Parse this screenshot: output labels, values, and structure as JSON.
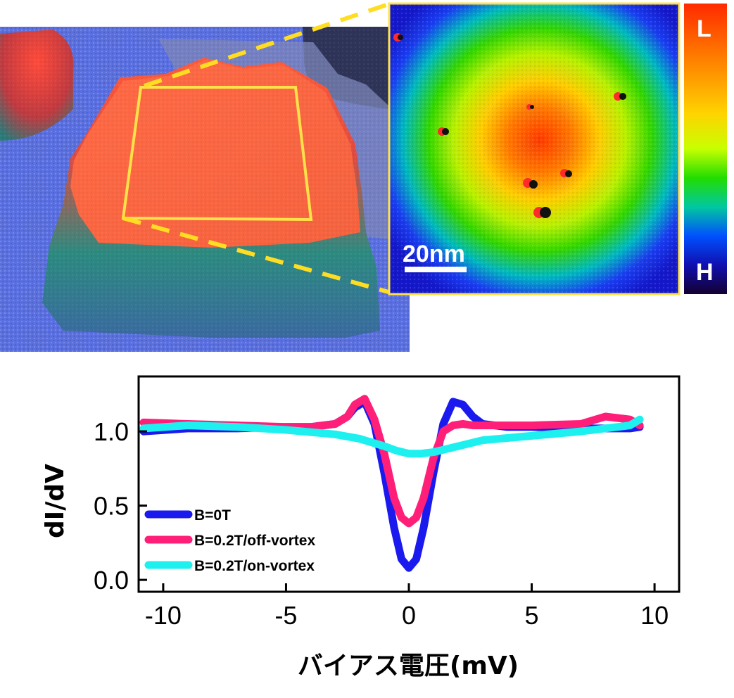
{
  "figure": {
    "scale_bar_label": "20nm",
    "colorbar_top_label": "L",
    "colorbar_bottom_label": "H",
    "colorbar_colors": [
      "#ff2a00",
      "#ff8c00",
      "#ffd400",
      "#c8ff00",
      "#22dd00",
      "#00c8a0",
      "#0050ff",
      "#1010b0",
      "#140030"
    ]
  },
  "chart_data": {
    "type": "line",
    "xlabel": "バイアス電圧(mV)",
    "ylabel": "dI/dV",
    "xlim": [
      -11,
      11
    ],
    "ylim": [
      -0.08,
      1.37
    ],
    "xticks": [
      "-10",
      "-5",
      "0",
      "5",
      "10"
    ],
    "xtick_values": [
      -10,
      -5,
      0,
      5,
      10
    ],
    "yticks": [
      "0.0",
      "0.5",
      "1.0"
    ],
    "ytick_values": [
      0.0,
      0.5,
      1.0
    ],
    "legend_position": "lower-left",
    "series": [
      {
        "name": "B=0T",
        "color": "#1a1aee",
        "x": [
          -10.8,
          -9,
          -7,
          -5,
          -4,
          -3,
          -2.5,
          -2.2,
          -1.8,
          -1.4,
          -1,
          -0.6,
          -0.3,
          0,
          0.3,
          0.6,
          1,
          1.4,
          1.8,
          2.2,
          2.6,
          3,
          4,
          5,
          7,
          9,
          9.4
        ],
        "y": [
          1.0,
          1.02,
          1.02,
          1.03,
          1.03,
          1.05,
          1.1,
          1.16,
          1.2,
          1.05,
          0.72,
          0.35,
          0.14,
          0.08,
          0.14,
          0.35,
          0.72,
          1.05,
          1.2,
          1.18,
          1.1,
          1.05,
          1.03,
          1.03,
          1.02,
          1.02,
          1.03
        ]
      },
      {
        "name": "B=0.2T/off-vortex",
        "color": "#ff1f78",
        "x": [
          -10.8,
          -9,
          -7,
          -5,
          -4,
          -3,
          -2.5,
          -2.2,
          -1.8,
          -1.4,
          -1,
          -0.6,
          -0.3,
          0,
          0.3,
          0.6,
          1,
          1.4,
          1.8,
          2.2,
          2.6,
          3,
          4,
          5,
          7,
          8,
          9,
          9.4
        ],
        "y": [
          1.06,
          1.05,
          1.04,
          1.03,
          1.03,
          1.05,
          1.1,
          1.18,
          1.22,
          1.08,
          0.85,
          0.55,
          0.42,
          0.38,
          0.42,
          0.55,
          0.82,
          1.0,
          1.04,
          1.05,
          1.04,
          1.04,
          1.04,
          1.04,
          1.05,
          1.1,
          1.08,
          1.04
        ]
      },
      {
        "name": "B=0.2T/on-vortex",
        "color": "#1ef0f0",
        "x": [
          -10.8,
          -9,
          -7,
          -5,
          -3,
          -2,
          -1,
          -0.5,
          0,
          0.5,
          1,
          2,
          3,
          5,
          7,
          9,
          9.4
        ],
        "y": [
          1.02,
          1.04,
          1.03,
          1.01,
          0.98,
          0.95,
          0.9,
          0.87,
          0.85,
          0.85,
          0.86,
          0.9,
          0.94,
          0.97,
          1.0,
          1.04,
          1.08
        ]
      }
    ]
  }
}
